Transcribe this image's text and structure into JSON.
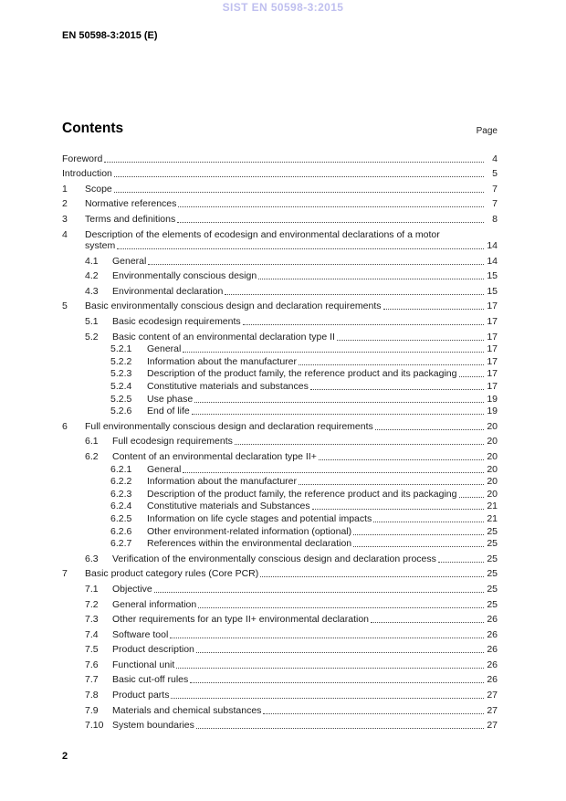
{
  "page": {
    "watermark": "SIST EN 50598-3:2015",
    "header": "EN 50598-3:2015 (E)",
    "footer_page_number": "2"
  },
  "contents": {
    "title": "Contents",
    "page_label": "Page",
    "entries": [
      {
        "level": 0,
        "num": "",
        "title": "Foreword",
        "page": "4"
      },
      {
        "level": 0,
        "num": "",
        "title": "Introduction",
        "page": "5"
      },
      {
        "level": 1,
        "num": "1",
        "title": "Scope",
        "page": "7"
      },
      {
        "level": 1,
        "num": "2",
        "title": "Normative references",
        "page": "7"
      },
      {
        "level": 1,
        "num": "3",
        "title": "Terms and definitions",
        "page": "8"
      },
      {
        "level": 1,
        "num": "4",
        "title": "Description of the elements of ecodesign and environmental declarations of a motor",
        "title2": "system",
        "page": "14"
      },
      {
        "level": 2,
        "num": "4.1",
        "title": "General",
        "page": "14"
      },
      {
        "level": 2,
        "num": "4.2",
        "title": "Environmentally conscious design",
        "page": "15"
      },
      {
        "level": 2,
        "num": "4.3",
        "title": "Environmental declaration",
        "page": "15"
      },
      {
        "level": 1,
        "num": "5",
        "title": "Basic environmentally conscious design and declaration requirements",
        "page": "17"
      },
      {
        "level": 2,
        "num": "5.1",
        "title": "Basic ecodesign requirements",
        "page": "17"
      },
      {
        "level": 2,
        "num": "5.2",
        "title": "Basic content of an environmental declaration type II",
        "page": "17"
      },
      {
        "level": 3,
        "num": "5.2.1",
        "title": "General",
        "page": "17"
      },
      {
        "level": 3,
        "num": "5.2.2",
        "title": "Information about the manufacturer",
        "page": "17"
      },
      {
        "level": 3,
        "num": "5.2.3",
        "title": "Description of the product family, the reference product and its packaging",
        "page": "17"
      },
      {
        "level": 3,
        "num": "5.2.4",
        "title": "Constitutive materials and substances",
        "page": "17"
      },
      {
        "level": 3,
        "num": "5.2.5",
        "title": "Use phase",
        "page": "19"
      },
      {
        "level": 3,
        "num": "5.2.6",
        "title": "End of life",
        "page": "19"
      },
      {
        "level": 1,
        "num": "6",
        "title": "Full environmentally conscious design and declaration requirements",
        "page": "20"
      },
      {
        "level": 2,
        "num": "6.1",
        "title": "Full ecodesign requirements",
        "page": "20"
      },
      {
        "level": 2,
        "num": "6.2",
        "title": "Content of an environmental declaration type II+",
        "page": "20"
      },
      {
        "level": 3,
        "num": "6.2.1",
        "title": "General",
        "page": "20"
      },
      {
        "level": 3,
        "num": "6.2.2",
        "title": "Information about the manufacturer",
        "page": "20"
      },
      {
        "level": 3,
        "num": "6.2.3",
        "title": "Description of the product family, the reference product and its packaging",
        "page": "20"
      },
      {
        "level": 3,
        "num": "6.2.4",
        "title": "Constitutive materials and Substances",
        "page": "21"
      },
      {
        "level": 3,
        "num": "6.2.5",
        "title": "Information on life cycle stages and potential impacts",
        "page": "21"
      },
      {
        "level": 3,
        "num": "6.2.6",
        "title": "Other environment-related information (optional)",
        "page": "25"
      },
      {
        "level": 3,
        "num": "6.2.7",
        "title": "References within the environmental declaration",
        "page": "25"
      },
      {
        "level": 2,
        "num": "6.3",
        "title": "Verification of the environmentally conscious design and declaration process",
        "page": "25"
      },
      {
        "level": 1,
        "num": "7",
        "title": "Basic product category rules (Core PCR)",
        "page": "25"
      },
      {
        "level": 2,
        "num": "7.1",
        "title": "Objective",
        "page": "25"
      },
      {
        "level": 2,
        "num": "7.2",
        "title": "General information",
        "page": "25"
      },
      {
        "level": 2,
        "num": "7.3",
        "title": "Other requirements for an type II+ environmental declaration",
        "page": "26"
      },
      {
        "level": 2,
        "num": "7.4",
        "title": "Software tool",
        "page": "26"
      },
      {
        "level": 2,
        "num": "7.5",
        "title": "Product description",
        "page": "26"
      },
      {
        "level": 2,
        "num": "7.6",
        "title": "Functional unit",
        "page": "26"
      },
      {
        "level": 2,
        "num": "7.7",
        "title": "Basic cut-off rules",
        "page": "26"
      },
      {
        "level": 2,
        "num": "7.8",
        "title": "Product parts",
        "page": "27"
      },
      {
        "level": 2,
        "num": "7.9",
        "title": "Materials and chemical substances",
        "page": "27"
      },
      {
        "level": 2,
        "num": "7.10",
        "title": "System boundaries",
        "page": "27"
      }
    ]
  }
}
